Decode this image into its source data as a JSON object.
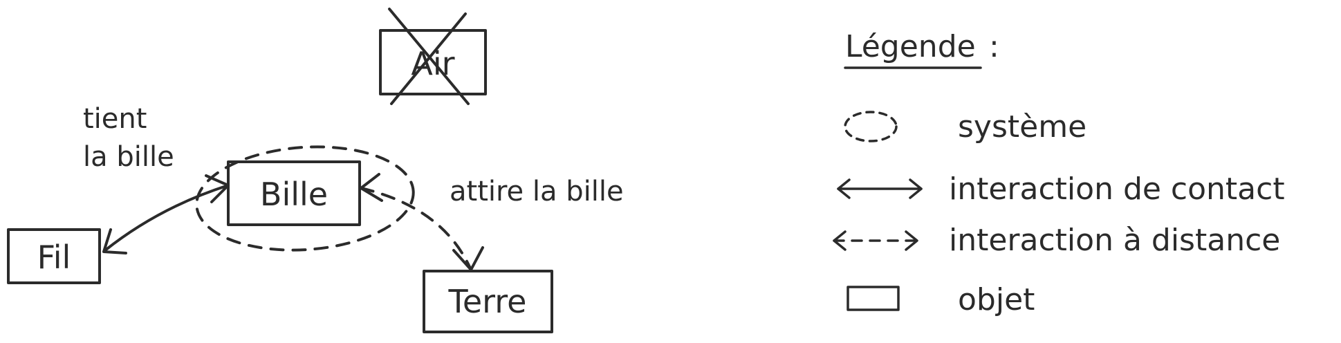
{
  "diagram": {
    "objects": {
      "air": "Air",
      "bille": "Bille",
      "fil": "Fil",
      "terre": "Terre"
    },
    "annotations": {
      "fil_bille_line1": "tient",
      "fil_bille_line2": "la bille",
      "terre_bille": "attire la bille"
    }
  },
  "legend": {
    "title": "Légende",
    "title_suffix": ":",
    "items": [
      {
        "symbol": "dashed-ellipse-icon",
        "label": "système"
      },
      {
        "symbol": "double-arrow-solid-icon",
        "label": "interaction de contact"
      },
      {
        "symbol": "double-arrow-dashed-icon",
        "label": "interaction à distance"
      },
      {
        "symbol": "rectangle-icon",
        "label": "objet"
      }
    ]
  }
}
